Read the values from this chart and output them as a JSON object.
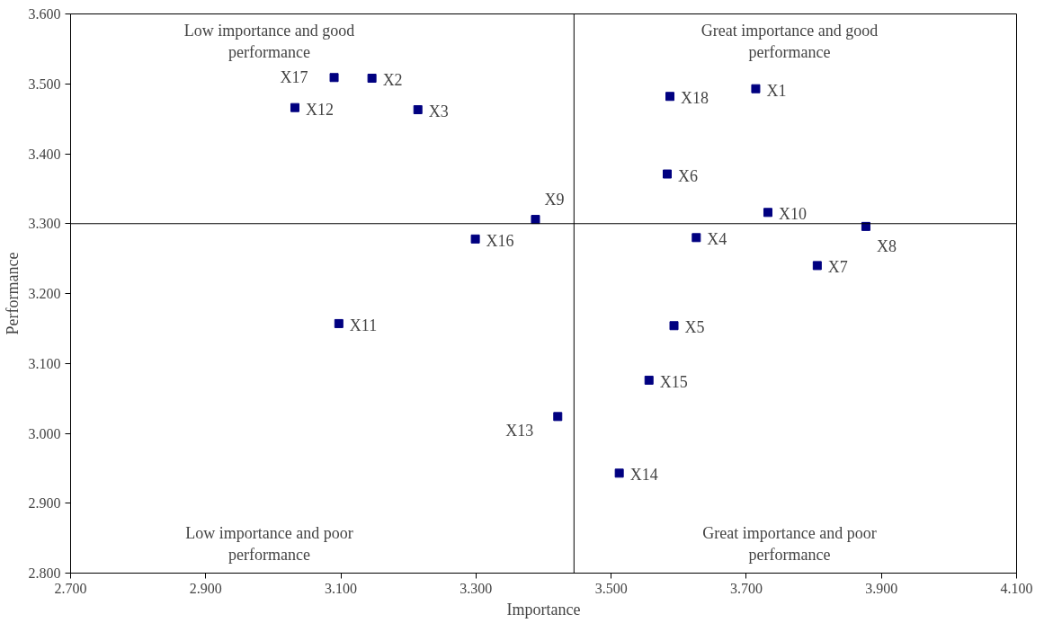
{
  "chart_data": {
    "type": "scatter",
    "xlabel": "Importance",
    "ylabel": "Performance",
    "x": [
      3.714,
      3.146,
      3.214,
      3.626,
      3.593,
      3.583,
      3.805,
      3.877,
      3.388,
      3.732,
      3.097,
      3.032,
      3.421,
      3.512,
      3.556,
      3.299,
      3.09,
      3.587
    ],
    "series": [
      {
        "color": "#000080",
        "values": [
          3.493,
          3.508,
          3.463,
          3.28,
          3.154,
          3.371,
          3.24,
          3.296,
          3.306,
          3.316,
          3.157,
          3.466,
          3.024,
          2.943,
          3.076,
          3.278,
          3.509,
          3.482
        ],
        "value_labels": [
          "X1",
          "X2",
          "X3",
          "X4",
          "X5",
          "X6",
          "X7",
          "X8",
          "X9",
          "X10",
          "X11",
          "X12",
          "X13",
          "X14",
          "X15",
          "X16",
          "X17",
          "X18"
        ]
      }
    ],
    "marker": "square",
    "grid": false,
    "xlim": [
      2.7,
      4.1
    ],
    "xticks": [
      {
        "value": 2.7,
        "label": "2.700"
      },
      {
        "value": 2.9,
        "label": "2.900"
      },
      {
        "value": 3.1,
        "label": "3.100"
      },
      {
        "value": 3.3,
        "label": "3.300"
      },
      {
        "value": 3.5,
        "label": "3.500"
      },
      {
        "value": 3.7,
        "label": "3.700"
      },
      {
        "value": 3.9,
        "label": "3.900"
      },
      {
        "value": 4.1,
        "label": "4.100"
      }
    ],
    "ylim": [
      2.8,
      3.6
    ],
    "yticks": [
      {
        "value": 2.8,
        "label": "2.800"
      },
      {
        "value": 2.9,
        "label": "2.900"
      },
      {
        "value": 3.0,
        "label": "3.000"
      },
      {
        "value": 3.1,
        "label": "3.100"
      },
      {
        "value": 3.2,
        "label": "3.200"
      },
      {
        "value": 3.3,
        "label": "3.300"
      },
      {
        "value": 3.4,
        "label": "3.400"
      },
      {
        "value": 3.5,
        "label": "3.500"
      },
      {
        "value": 3.6,
        "label": "3.600"
      }
    ],
    "ref_lines": [
      {
        "axis": "x",
        "value": 3.445,
        "color": "#000000"
      },
      {
        "axis": "y",
        "value": 3.3,
        "color": "#000000"
      }
    ],
    "annotations": [
      "Low importance and good\nperformance",
      "Great importance and good\nperformance",
      "Low importance and poor\nperformance",
      "Great importance and poor\nperformance"
    ]
  }
}
